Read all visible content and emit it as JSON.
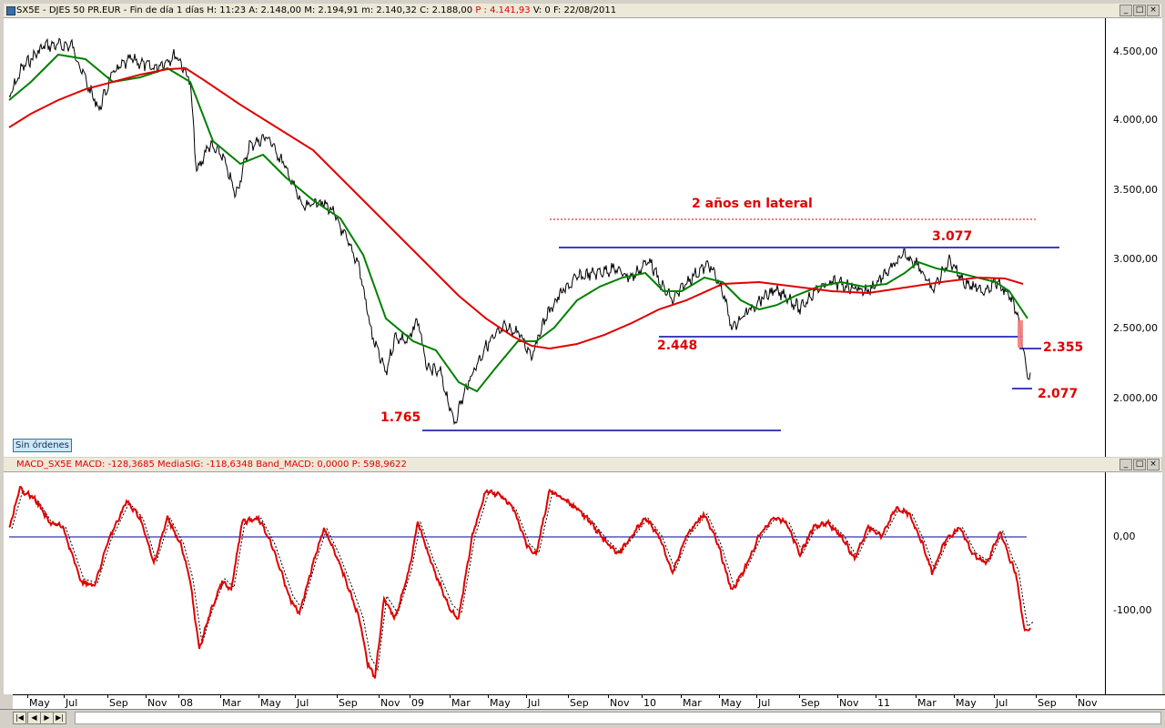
{
  "main_panel": {
    "title": "SX5E - DJES 50 PR.EUR - Fin de día 1 días  H: 11:23  A: 2.148,00  M: 2.194,91  m: 2.140,32  C: 2.188,00",
    "price_text": "P : 4.141,93",
    "tail_text": "V: 0  F: 22/08/2011",
    "y_ticks": [
      "4.500,00",
      "4.000,00",
      "3.500,00",
      "3.000,00",
      "2.500,00",
      "2.000,00"
    ],
    "orders_button": "Sin órdenes"
  },
  "macd_panel": {
    "title": "MACD_SX5E  MACD: -128,3685  MediaSIG: -118,6348  Band_MACD: 0,0000",
    "price_text": "P: 598,9622",
    "y_ticks": [
      "0,00",
      "-100,00"
    ]
  },
  "annotations": {
    "lateral": "2 años en lateral",
    "high": "3.077",
    "support": "2.448",
    "low_2009": "1.765",
    "resistance_new": "2.355",
    "low_2011": "2.077"
  },
  "x_axis": [
    "May",
    "Jul",
    "Sep",
    "Nov",
    "08",
    "Mar",
    "May",
    "Jul",
    "Sep",
    "Nov",
    "09",
    "Mar",
    "May",
    "Jul",
    "Sep",
    "Nov",
    "10",
    "Mar",
    "May",
    "Jul",
    "Sep",
    "Nov",
    "11",
    "Mar",
    "May",
    "Jul",
    "Sep",
    "Nov"
  ],
  "colors": {
    "price": "#000000",
    "ma_fast": "#008000",
    "ma_slow": "#e00000",
    "levels": "#0000a0",
    "macd": "#e00000",
    "signal": "#000000"
  },
  "window_buttons": [
    "_",
    "□",
    "×"
  ],
  "nav_buttons": [
    "|◀",
    "◀",
    "▶",
    "▶|"
  ]
}
